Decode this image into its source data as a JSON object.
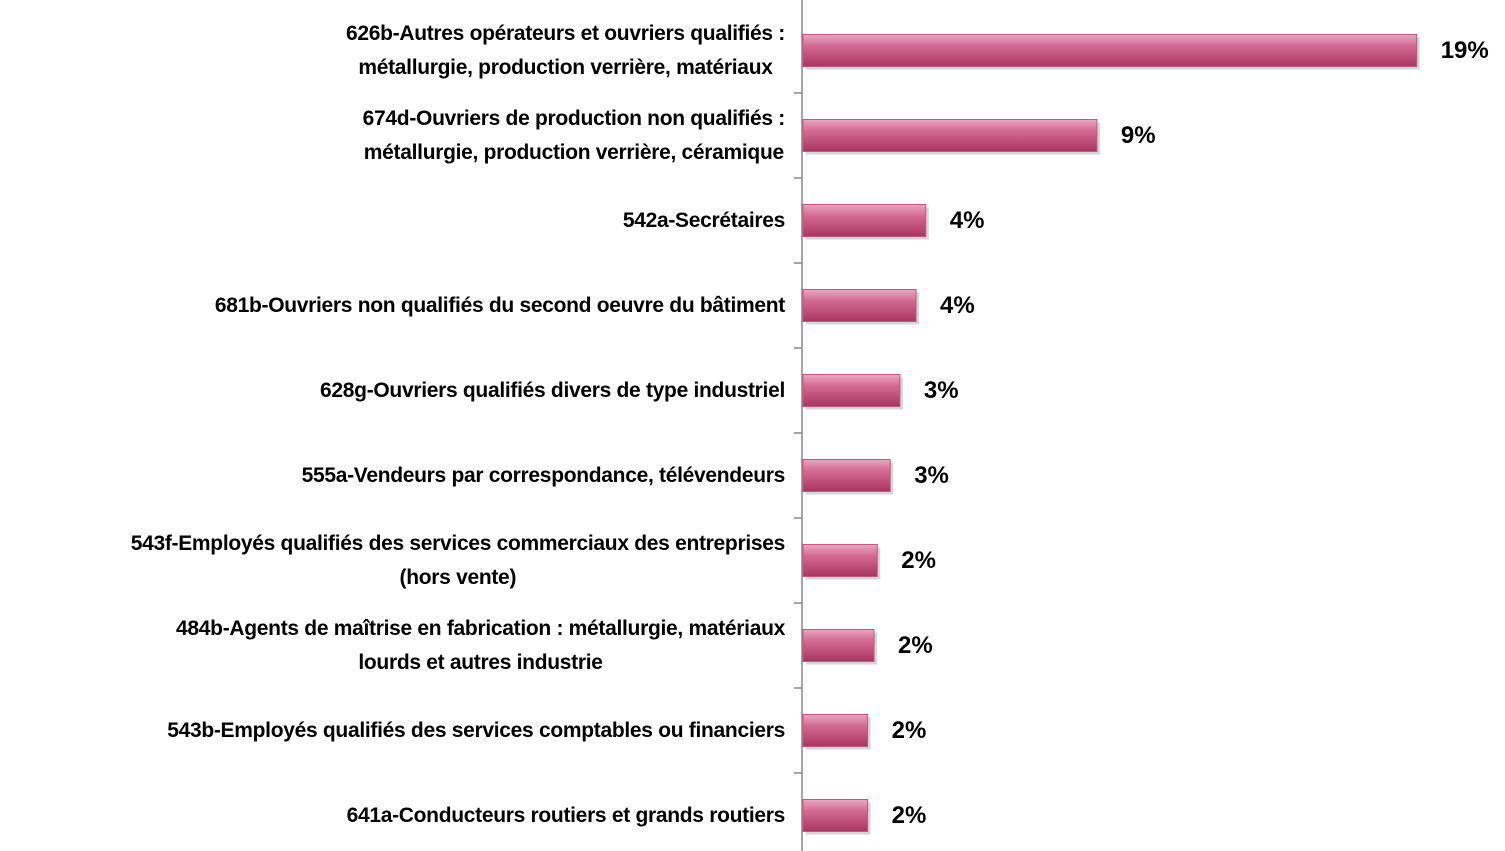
{
  "chart_data": {
    "type": "barh",
    "categories": [
      "626b-Autres opérateurs et ouvriers qualifiés :\nmétallurgie, production verrière, matériaux",
      "674d-Ouvriers de production non qualifiés :\nmétallurgie, production verrière, céramique",
      "542a-Secrétaires",
      "681b-Ouvriers non qualifiés du second oeuvre du bâtiment",
      "628g-Ouvriers qualifiés divers de type industriel",
      "555a-Vendeurs par correspondance, télévendeurs",
      "543f-Employés qualifiés  des services commerciaux des entreprises\n(hors vente)",
      "484b-Agents de maîtrise en fabrication : métallurgie,  matériaux\nlourds et autres industrie",
      "543b-Employés qualifiés des services comptables ou financiers",
      "641a-Conducteurs routiers et grands routiers"
    ],
    "values": [
      19,
      9.1,
      3.8,
      3.5,
      3.0,
      2.7,
      2.3,
      2.2,
      2.0,
      2.0
    ],
    "value_labels": [
      "19%",
      "9%",
      "4%",
      "4%",
      "3%",
      "3%",
      "2%",
      "2%",
      "2%",
      "2%"
    ],
    "color": "#c8547f",
    "xlim": [
      0,
      20
    ]
  }
}
